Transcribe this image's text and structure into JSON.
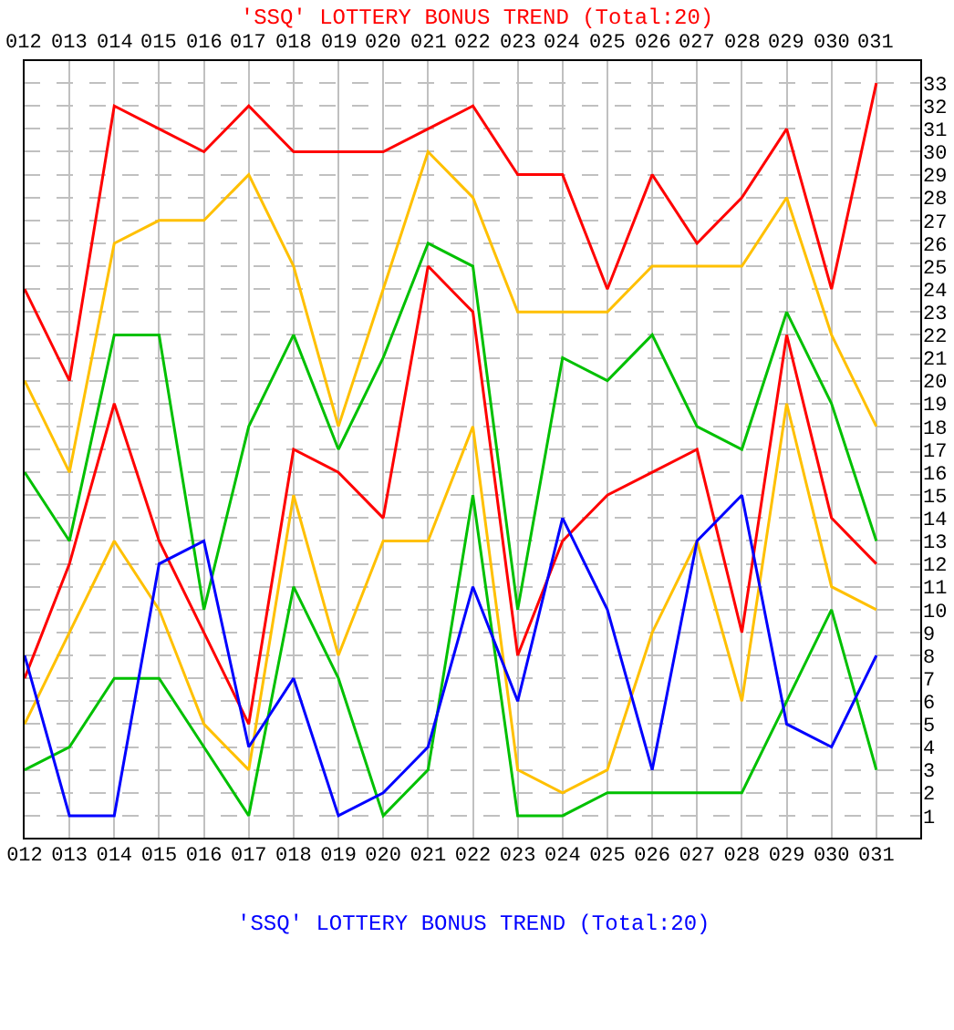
{
  "chart_data": {
    "type": "line",
    "title": "'SSQ' LOTTERY BONUS TREND (Total:20)",
    "annotations": [
      "'SSQ' LOTTERY BONUS TREND (Total:20)"
    ],
    "categories": [
      "012",
      "013",
      "014",
      "015",
      "016",
      "017",
      "018",
      "019",
      "020",
      "021",
      "022",
      "023",
      "024",
      "025",
      "026",
      "027",
      "028",
      "029",
      "030",
      "031"
    ],
    "series": [
      {
        "color": "#ff0000",
        "values": [
          24,
          20,
          32,
          31,
          30,
          32,
          30,
          30,
          30,
          31,
          32,
          29,
          29,
          24,
          29,
          26,
          28,
          31,
          24,
          33
        ]
      },
      {
        "color": "#ffc000",
        "values": [
          20,
          16,
          26,
          27,
          27,
          29,
          25,
          18,
          24,
          30,
          28,
          23,
          23,
          23,
          25,
          25,
          25,
          28,
          22,
          18
        ]
      },
      {
        "color": "#00c000",
        "values": [
          16,
          13,
          22,
          22,
          10,
          18,
          22,
          17,
          21,
          26,
          25,
          10,
          21,
          20,
          22,
          18,
          17,
          23,
          19,
          13
        ]
      },
      {
        "color": "#ff0000",
        "values": [
          7,
          12,
          19,
          13,
          9,
          5,
          17,
          16,
          14,
          25,
          23,
          8,
          13,
          15,
          16,
          17,
          9,
          22,
          14,
          12
        ]
      },
      {
        "color": "#ffc000",
        "values": [
          5,
          9,
          13,
          10,
          5,
          3,
          15,
          8,
          13,
          13,
          18,
          3,
          2,
          3,
          9,
          13,
          6,
          19,
          11,
          10
        ]
      },
      {
        "color": "#00c000",
        "values": [
          3,
          4,
          7,
          7,
          4,
          1,
          11,
          7,
          1,
          3,
          15,
          1,
          1,
          2,
          2,
          2,
          2,
          6,
          10,
          3
        ]
      },
      {
        "color": "#0000ff",
        "values": [
          8,
          1,
          1,
          12,
          13,
          4,
          7,
          1,
          2,
          4,
          11,
          6,
          14,
          10,
          3,
          13,
          15,
          5,
          4,
          8
        ]
      }
    ],
    "ylim": [
      0,
      34
    ],
    "yticks": [
      1,
      2,
      3,
      4,
      5,
      6,
      7,
      8,
      9,
      10,
      11,
      12,
      13,
      14,
      15,
      16,
      17,
      18,
      19,
      20,
      21,
      22,
      23,
      24,
      25,
      26,
      27,
      28,
      29,
      30,
      31,
      32,
      33
    ],
    "grid": true,
    "marker": "none",
    "line_style": "solid"
  }
}
